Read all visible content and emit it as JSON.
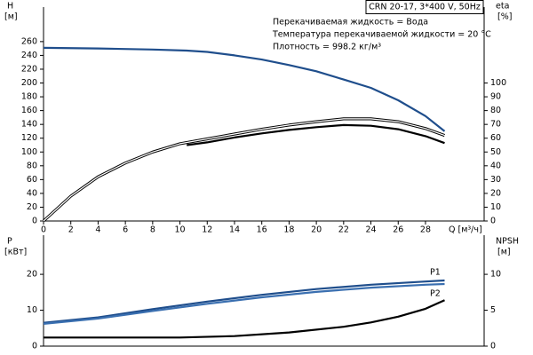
{
  "chart_data": [
    {
      "type": "line",
      "model": "CRN 20-17, 3*400 V, 50Hz",
      "annotations": [
        "Перекачиваемая жидкость = Вода",
        "Температура перекачиваемой жидкости = 20 °C",
        "Плотность = 998.2 кг/м³"
      ],
      "y_label": "H",
      "y_unit": "[м]",
      "y2_label": "eta",
      "y2_unit": "[%]",
      "x_label": "Q [м³/ч]",
      "xlim": [
        0,
        32.3
      ],
      "xticks": [
        0,
        2,
        4,
        6,
        8,
        10,
        12,
        14,
        16,
        18,
        20,
        22,
        24,
        26,
        28
      ],
      "ylim": [
        0,
        310
      ],
      "yticks": [
        0,
        20,
        40,
        60,
        80,
        100,
        120,
        140,
        160,
        180,
        200,
        220,
        240,
        260
      ],
      "y2lim": [
        0,
        155
      ],
      "y2ticks": [
        0,
        10,
        20,
        30,
        40,
        50,
        60,
        70,
        80,
        90,
        100
      ],
      "series": [
        {
          "color": "#1f4e8c",
          "axis": "y",
          "style": "solid",
          "x": [
            0,
            4,
            8,
            10.5,
            12,
            14,
            16,
            18,
            20,
            22,
            24,
            26,
            28,
            29.4
          ],
          "values": [
            251,
            250,
            248.5,
            247,
            245,
            240,
            234,
            226,
            217,
            205,
            193,
            175,
            152,
            130
          ]
        },
        {
          "color": "#000000",
          "axis": "y2",
          "style": "double",
          "x": [
            0,
            1,
            2,
            4,
            6,
            8,
            10,
            12,
            14,
            16,
            18,
            20,
            22,
            24,
            26,
            28,
            29.4
          ],
          "values": [
            0,
            9,
            18,
            32,
            42,
            50,
            56,
            59.5,
            63,
            66.5,
            69.5,
            72,
            74,
            74,
            72,
            67,
            62
          ]
        },
        {
          "color": "#000000",
          "axis": "y2",
          "style": "solid",
          "x": [
            10.5,
            12,
            14,
            16,
            18,
            20,
            22,
            24,
            26,
            28,
            29.4
          ],
          "values": [
            55,
            57,
            60.5,
            63.5,
            66,
            68,
            69.5,
            69,
            66.5,
            61.5,
            56.5
          ]
        }
      ]
    },
    {
      "type": "line",
      "y_label": "P",
      "y_unit": "[кВт]",
      "y2_label": "NPSH",
      "y2_unit": "[м]",
      "xlim": [
        0,
        32.3
      ],
      "ylim": [
        0,
        30.9
      ],
      "yticks": [
        0,
        10,
        20
      ],
      "y2lim": [
        0,
        15.45
      ],
      "y2ticks": [
        0,
        5,
        10
      ],
      "series": [
        {
          "name": "P1",
          "color": "#1f4e8c",
          "axis": "y",
          "style": "solid",
          "x": [
            0,
            4,
            8,
            12,
            16,
            20,
            24,
            28,
            29.4
          ],
          "values": [
            6.5,
            8,
            10.3,
            12.4,
            14.3,
            15.9,
            17.1,
            18.0,
            18.3
          ]
        },
        {
          "name": "P2",
          "color": "#3a6fb0",
          "axis": "y",
          "style": "solid",
          "x": [
            0,
            4,
            8,
            12,
            16,
            20,
            24,
            28,
            29.4
          ],
          "values": [
            6.2,
            7.7,
            9.8,
            11.8,
            13.6,
            15.1,
            16.3,
            17.1,
            17.3
          ]
        },
        {
          "color": "#000000",
          "axis": "y2",
          "style": "solid",
          "x": [
            0,
            10,
            14,
            18,
            22,
            24,
            26,
            28,
            29.4
          ],
          "values": [
            1.2,
            1.2,
            1.4,
            1.9,
            2.7,
            3.3,
            4.1,
            5.2,
            6.4
          ]
        }
      ]
    }
  ]
}
